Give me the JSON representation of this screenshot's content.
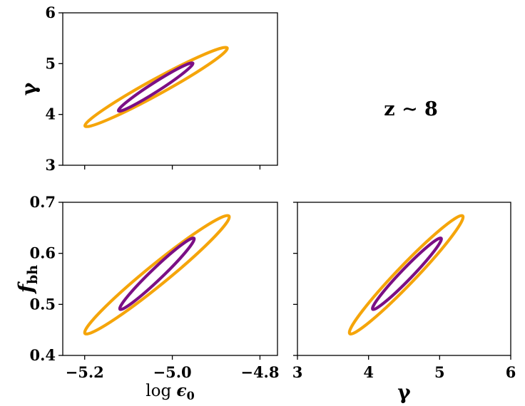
{
  "annotation": "z ∼ 8",
  "colors": {
    "outer_contour": "#f5a50a",
    "inner_contour": "#7b0f85"
  },
  "chart_data": [
    {
      "type": "contour",
      "panel": "top-left",
      "xlabel": "",
      "ylabel": "γ",
      "xlim": [
        -5.25,
        -4.76
      ],
      "ylim": [
        3,
        6
      ],
      "xticks": [
        -5.2,
        -5.0,
        -4.8
      ],
      "xtick_labels": [
        "",
        "",
        ""
      ],
      "yticks": [
        3,
        4,
        5,
        6
      ],
      "ytick_labels": [
        "3",
        "4",
        "5",
        "6"
      ],
      "contours": [
        {
          "level": "outer",
          "center": [
            -5.037,
            4.54
          ],
          "extent_x": [
            -5.2,
            -4.875
          ],
          "extent_y": [
            3.75,
            5.31
          ]
        },
        {
          "level": "inner",
          "center": [
            -5.038,
            4.54
          ],
          "extent_x": [
            -5.12,
            -4.95
          ],
          "extent_y": [
            4.05,
            5.0
          ]
        }
      ]
    },
    {
      "type": "contour",
      "panel": "bottom-left",
      "xlabel": "log ϵ0",
      "ylabel": "fbh",
      "xlim": [
        -5.25,
        -4.76
      ],
      "ylim": [
        0.4,
        0.7
      ],
      "xticks": [
        -5.2,
        -5.0,
        -4.8
      ],
      "xtick_labels": [
        "−5.2",
        "−5.0",
        "−4.8"
      ],
      "yticks": [
        0.4,
        0.5,
        0.6,
        0.7
      ],
      "ytick_labels": [
        "0.4",
        "0.5",
        "0.6",
        "0.7"
      ],
      "contours": [
        {
          "level": "outer",
          "center": [
            -5.035,
            0.558
          ],
          "extent_x": [
            -5.2,
            -4.87
          ],
          "extent_y": [
            0.443,
            0.675
          ]
        },
        {
          "level": "inner",
          "center": [
            -5.035,
            0.56
          ],
          "extent_x": [
            -5.12,
            -4.95
          ],
          "extent_y": [
            0.49,
            0.63
          ]
        }
      ]
    },
    {
      "type": "contour",
      "panel": "bottom-right",
      "xlabel": "γ",
      "ylabel": "",
      "xlim": [
        3,
        6
      ],
      "ylim": [
        0.4,
        0.7
      ],
      "xticks": [
        3,
        4,
        5,
        6
      ],
      "xtick_labels": [
        "3",
        "4",
        "5",
        "6"
      ],
      "yticks": [
        0.4,
        0.5,
        0.6,
        0.7
      ],
      "ytick_labels": [
        "",
        "",
        "",
        ""
      ],
      "contours": [
        {
          "level": "outer",
          "center": [
            4.53,
            0.558
          ],
          "extent_x": [
            3.73,
            5.33
          ],
          "extent_y": [
            0.443,
            0.675
          ]
        },
        {
          "level": "inner",
          "center": [
            4.54,
            0.56
          ],
          "extent_x": [
            4.05,
            5.02
          ],
          "extent_y": [
            0.49,
            0.63
          ]
        }
      ]
    }
  ]
}
